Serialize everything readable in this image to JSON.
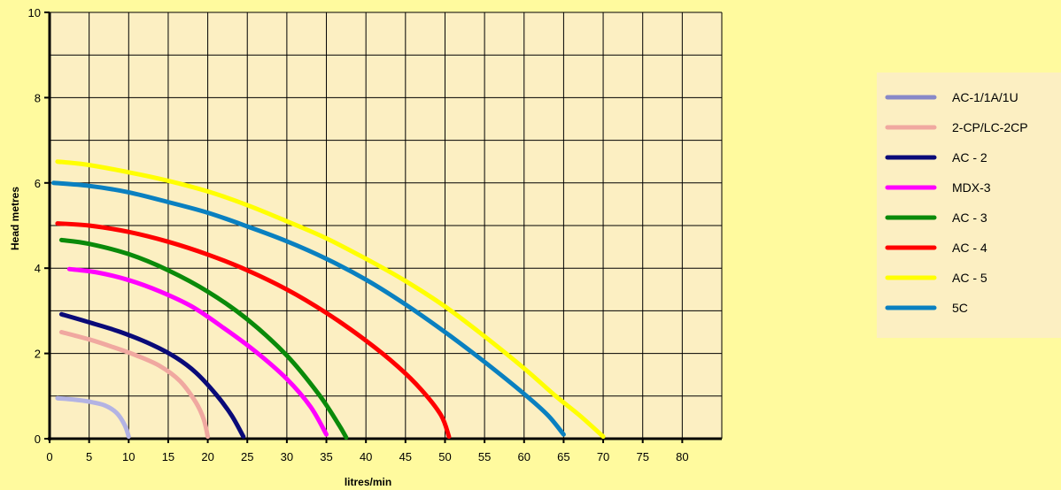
{
  "chart_data": {
    "type": "line",
    "xlabel": "litres/min",
    "ylabel": "Head metres",
    "xlim": [
      0,
      85
    ],
    "ylim": [
      0,
      10
    ],
    "x_ticks": [
      0,
      5,
      10,
      15,
      20,
      25,
      30,
      35,
      40,
      45,
      50,
      55,
      60,
      65,
      70,
      75,
      80
    ],
    "y_ticks": [
      0,
      2,
      4,
      6,
      8,
      10
    ],
    "grid": true,
    "legend_position": "right",
    "series": [
      {
        "name": "AC-1/1A/1U",
        "color": "#B3B3E3",
        "legend_color": "#8888C8",
        "points": [
          [
            1,
            0.95
          ],
          [
            3,
            0.92
          ],
          [
            5,
            0.87
          ],
          [
            7,
            0.78
          ],
          [
            8.5,
            0.6
          ],
          [
            9.5,
            0.32
          ],
          [
            10,
            0.05
          ]
        ]
      },
      {
        "name": "2-CP/LC-2CP",
        "color": "#F0A8A0",
        "legend_color": "#F0A8A0",
        "points": [
          [
            1.5,
            2.5
          ],
          [
            5,
            2.33
          ],
          [
            8,
            2.15
          ],
          [
            11,
            1.95
          ],
          [
            14,
            1.7
          ],
          [
            16.5,
            1.35
          ],
          [
            18.5,
            0.85
          ],
          [
            19.5,
            0.45
          ],
          [
            20,
            0.05
          ]
        ]
      },
      {
        "name": "AC - 2",
        "color": "#0A0A78",
        "legend_color": "#0A0A78",
        "points": [
          [
            1.5,
            2.92
          ],
          [
            5,
            2.73
          ],
          [
            9,
            2.5
          ],
          [
            13,
            2.2
          ],
          [
            16,
            1.9
          ],
          [
            18.5,
            1.55
          ],
          [
            21,
            1.05
          ],
          [
            23,
            0.55
          ],
          [
            24.5,
            0.05
          ]
        ]
      },
      {
        "name": "MDX-3",
        "color": "#FF00FF",
        "legend_color": "#FF00FF",
        "points": [
          [
            2.5,
            3.98
          ],
          [
            6,
            3.9
          ],
          [
            10,
            3.72
          ],
          [
            14,
            3.45
          ],
          [
            18,
            3.1
          ],
          [
            22,
            2.6
          ],
          [
            26,
            2.05
          ],
          [
            30,
            1.4
          ],
          [
            33,
            0.75
          ],
          [
            35,
            0.1
          ]
        ]
      },
      {
        "name": "AC - 3",
        "color": "#0A8A0A",
        "legend_color": "#0A8A0A",
        "points": [
          [
            1.5,
            4.66
          ],
          [
            5,
            4.57
          ],
          [
            10,
            4.33
          ],
          [
            15,
            3.95
          ],
          [
            20,
            3.45
          ],
          [
            25,
            2.8
          ],
          [
            30,
            1.95
          ],
          [
            34,
            1.05
          ],
          [
            36.5,
            0.35
          ],
          [
            37.5,
            0.03
          ]
        ]
      },
      {
        "name": "AC - 4",
        "color": "#FF0000",
        "legend_color": "#FF0000",
        "points": [
          [
            1,
            5.05
          ],
          [
            5,
            5.0
          ],
          [
            10,
            4.85
          ],
          [
            15,
            4.62
          ],
          [
            20,
            4.32
          ],
          [
            25,
            3.95
          ],
          [
            30,
            3.5
          ],
          [
            35,
            2.95
          ],
          [
            40,
            2.3
          ],
          [
            44,
            1.7
          ],
          [
            47,
            1.15
          ],
          [
            49.5,
            0.55
          ],
          [
            50.5,
            0.05
          ]
        ]
      },
      {
        "name": "AC - 5",
        "color": "#FFFF00",
        "legend_color": "#FFFF00",
        "points": [
          [
            1,
            6.5
          ],
          [
            5,
            6.42
          ],
          [
            10,
            6.25
          ],
          [
            15,
            6.05
          ],
          [
            20,
            5.8
          ],
          [
            25,
            5.48
          ],
          [
            30,
            5.1
          ],
          [
            35,
            4.7
          ],
          [
            40,
            4.22
          ],
          [
            45,
            3.7
          ],
          [
            50,
            3.1
          ],
          [
            55,
            2.4
          ],
          [
            60,
            1.65
          ],
          [
            64,
            1.0
          ],
          [
            67,
            0.55
          ],
          [
            70,
            0.05
          ]
        ]
      },
      {
        "name": "5C",
        "color": "#0A80C0",
        "legend_color": "#0A80C0",
        "points": [
          [
            0.5,
            6.0
          ],
          [
            5,
            5.93
          ],
          [
            10,
            5.78
          ],
          [
            15,
            5.55
          ],
          [
            20,
            5.3
          ],
          [
            25,
            4.98
          ],
          [
            30,
            4.63
          ],
          [
            35,
            4.22
          ],
          [
            40,
            3.73
          ],
          [
            45,
            3.15
          ],
          [
            50,
            2.5
          ],
          [
            55,
            1.8
          ],
          [
            60,
            1.05
          ],
          [
            63,
            0.55
          ],
          [
            65,
            0.1
          ]
        ]
      }
    ]
  },
  "colors": {
    "page_background": "#FFFA9E",
    "plot_background": "#FCEFC2",
    "legend_background": "#FCEFC2",
    "grid": "#000000"
  }
}
